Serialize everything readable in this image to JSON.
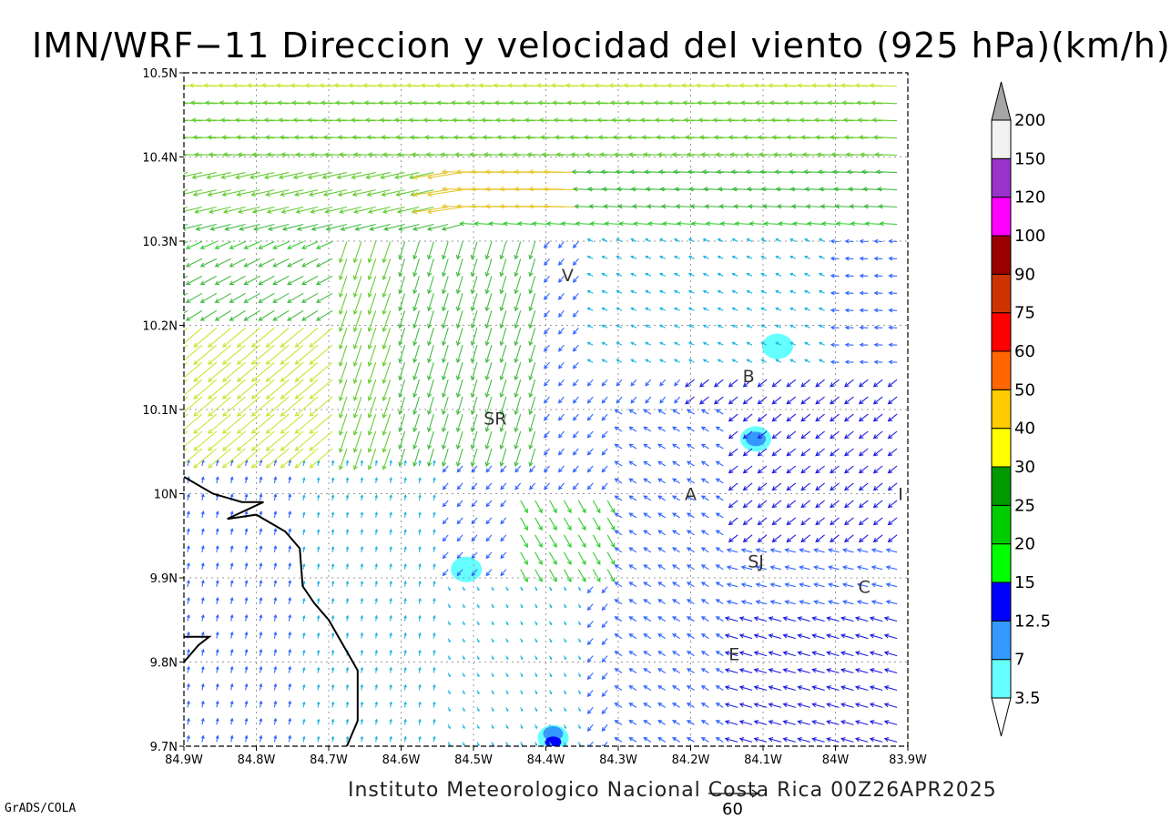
{
  "title": "IMN/WRF−11 Direccion y velocidad del viento (925 hPa)(km/h)",
  "footer": "Instituto Meteorologico Nacional Costa Rica  00Z26APR2025",
  "brand": "GrADS/COLA",
  "reference_vector": {
    "label": "60",
    "speed": 60
  },
  "map": {
    "lon_range": [
      -84.9,
      -83.9
    ],
    "lat_range": [
      9.7,
      10.5
    ],
    "lon_ticks": [
      {
        "value": -84.9,
        "label": "84.9W"
      },
      {
        "value": -84.8,
        "label": "84.8W"
      },
      {
        "value": -84.7,
        "label": "84.7W"
      },
      {
        "value": -84.6,
        "label": "84.6W"
      },
      {
        "value": -84.5,
        "label": "84.5W"
      },
      {
        "value": -84.4,
        "label": "84.4W"
      },
      {
        "value": -84.3,
        "label": "84.3W"
      },
      {
        "value": -84.2,
        "label": "84.2W"
      },
      {
        "value": -84.1,
        "label": "84.1W"
      },
      {
        "value": -84.0,
        "label": "84W"
      },
      {
        "value": -83.9,
        "label": "83.9W"
      }
    ],
    "lat_ticks": [
      {
        "value": 9.7,
        "label": "9.7N"
      },
      {
        "value": 9.8,
        "label": "9.8N"
      },
      {
        "value": 9.9,
        "label": "9.9N"
      },
      {
        "value": 10.0,
        "label": "10N"
      },
      {
        "value": 10.1,
        "label": "10.1N"
      },
      {
        "value": 10.2,
        "label": "10.2N"
      },
      {
        "value": 10.3,
        "label": "10.3N"
      },
      {
        "value": 10.4,
        "label": "10.4N"
      },
      {
        "value": 10.5,
        "label": "10.5N"
      }
    ],
    "cities": [
      {
        "label": "V",
        "lon": -84.37,
        "lat": 10.26
      },
      {
        "label": "SR",
        "lon": -84.47,
        "lat": 10.09
      },
      {
        "label": "B",
        "lon": -84.12,
        "lat": 10.14
      },
      {
        "label": "A",
        "lon": -84.2,
        "lat": 10.0
      },
      {
        "label": "I",
        "lon": -83.91,
        "lat": 10.0
      },
      {
        "label": "SJ",
        "lon": -84.11,
        "lat": 9.92
      },
      {
        "label": "C",
        "lon": -83.96,
        "lat": 9.89
      },
      {
        "label": "E",
        "lon": -84.14,
        "lat": 9.81
      }
    ],
    "coastline": [
      [
        -84.9,
        10.02
      ],
      [
        -84.86,
        10.0
      ],
      [
        -84.82,
        9.99
      ],
      [
        -84.79,
        9.99
      ],
      [
        -84.84,
        9.97
      ],
      [
        -84.8,
        9.975
      ],
      [
        -84.76,
        9.955
      ],
      [
        -84.74,
        9.935
      ],
      [
        -84.736,
        9.89
      ],
      [
        -84.72,
        9.87
      ],
      [
        -84.7,
        9.85
      ],
      [
        -84.68,
        9.82
      ],
      [
        -84.66,
        9.79
      ],
      [
        -84.66,
        9.73
      ],
      [
        -84.675,
        9.7
      ]
    ],
    "coastline_2": [
      [
        -84.9,
        9.8
      ],
      [
        -84.895,
        9.805
      ],
      [
        -84.88,
        9.82
      ],
      [
        -84.865,
        9.83
      ],
      [
        -84.9,
        9.83
      ]
    ],
    "speed_patches": [
      {
        "lon": -84.11,
        "lat": 10.065,
        "level": 3.5
      },
      {
        "lon": -84.11,
        "lat": 10.065,
        "level": 7
      },
      {
        "lon": -84.51,
        "lat": 9.91,
        "level": 3.5
      },
      {
        "lon": -84.39,
        "lat": 9.71,
        "level": 3.5
      },
      {
        "lon": -84.39,
        "lat": 9.715,
        "level": 7
      },
      {
        "lon": -84.39,
        "lat": 9.705,
        "level": 12.5
      },
      {
        "lon": -84.08,
        "lat": 10.175,
        "level": 3.5
      }
    ]
  },
  "colorbar": {
    "levels": [
      3.5,
      7,
      12.5,
      15,
      20,
      25,
      30,
      40,
      50,
      60,
      75,
      90,
      100,
      120,
      150,
      200
    ],
    "labels": [
      "3.5",
      "7",
      "12.5",
      "15",
      "20",
      "25",
      "30",
      "40",
      "50",
      "60",
      "75",
      "90",
      "100",
      "120",
      "150",
      "200"
    ],
    "colors": [
      "#66ffff",
      "#3399ff",
      "#0000ff",
      "#00ff00",
      "#00cc00",
      "#009900",
      "#ffff00",
      "#ffcc00",
      "#ff6600",
      "#ff0000",
      "#cc3300",
      "#990000",
      "#ff00ff",
      "#9933cc",
      "#f2f2f2",
      "#a6a6a6"
    ],
    "below_color": "#ffffff",
    "above_color": "#a6a6a6"
  },
  "vector_colors": {
    "below_3.5": "#7700cc",
    "3.5-7": "#1fb5e0",
    "7-12.5": "#3366ff",
    "12.5-15": "#1f1fe0",
    "15-20": "#33cc33",
    "20-25": "#44bb44",
    "25-30": "#66cc33",
    "30-40": "#c8e633",
    "40-50": "#e6c833",
    "50-60": "#f08020",
    "60-75": "#e63333"
  }
}
